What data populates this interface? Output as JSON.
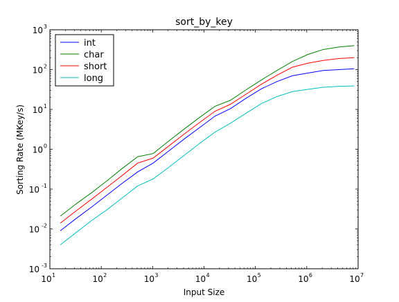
{
  "chart_data": {
    "type": "line",
    "title": "sort_by_key",
    "xlabel": "Input Size",
    "ylabel": "Sorting Rate (MKey/s)",
    "xscale": "log",
    "yscale": "log",
    "xlim": [
      10,
      10000000
    ],
    "ylim": [
      0.001,
      1000
    ],
    "grid": false,
    "legend_position": "top-left",
    "x_ticks": [
      {
        "base": "10",
        "exp": "1"
      },
      {
        "base": "10",
        "exp": "2"
      },
      {
        "base": "10",
        "exp": "3"
      },
      {
        "base": "10",
        "exp": "4"
      },
      {
        "base": "10",
        "exp": "5"
      },
      {
        "base": "10",
        "exp": "6"
      },
      {
        "base": "10",
        "exp": "7"
      }
    ],
    "y_ticks": [
      {
        "base": "10",
        "exp": "-3"
      },
      {
        "base": "10",
        "exp": "-2"
      },
      {
        "base": "10",
        "exp": "-1"
      },
      {
        "base": "10",
        "exp": "0"
      },
      {
        "base": "10",
        "exp": "1"
      },
      {
        "base": "10",
        "exp": "2"
      },
      {
        "base": "10",
        "exp": "3"
      }
    ],
    "x": [
      16,
      32,
      64,
      128,
      256,
      512,
      1024,
      2048,
      4096,
      8192,
      16384,
      32768,
      65536,
      131072,
      262144,
      524288,
      1048576,
      2097152,
      4194304,
      8388608
    ],
    "series": [
      {
        "name": "int",
        "color": "#0000ff",
        "values": [
          0.009,
          0.018,
          0.035,
          0.07,
          0.14,
          0.27,
          0.45,
          0.9,
          1.8,
          3.5,
          6.8,
          10.5,
          19,
          33,
          50,
          70,
          82,
          95,
          100,
          105
        ]
      },
      {
        "name": "char",
        "color": "#008000",
        "values": [
          0.021,
          0.042,
          0.08,
          0.16,
          0.33,
          0.65,
          0.78,
          1.6,
          3.2,
          6.3,
          12,
          17,
          31,
          55,
          95,
          160,
          240,
          320,
          370,
          400
        ]
      },
      {
        "name": "short",
        "color": "#ff0000",
        "values": [
          0.014,
          0.028,
          0.055,
          0.11,
          0.22,
          0.45,
          0.6,
          1.2,
          2.4,
          4.7,
          9,
          13.5,
          24,
          43,
          72,
          115,
          145,
          170,
          190,
          200
        ]
      },
      {
        "name": "long",
        "color": "#00bfbf",
        "values": [
          0.004,
          0.008,
          0.016,
          0.03,
          0.06,
          0.12,
          0.18,
          0.35,
          0.7,
          1.4,
          2.7,
          4.5,
          8,
          14,
          21,
          28,
          32,
          36,
          38,
          39
        ]
      }
    ]
  }
}
